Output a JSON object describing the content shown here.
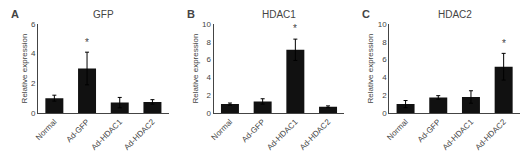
{
  "chart_data": [
    {
      "type": "bar",
      "title": "GFP",
      "ylabel": "Relative expression",
      "categories": [
        "Normal",
        "Ad-GFP",
        "Ad-HDAC1",
        "Ad-HDAC2"
      ],
      "values": [
        1.0,
        3.0,
        0.7,
        0.75
      ],
      "errors": [
        0.2,
        1.1,
        0.35,
        0.15
      ],
      "color": "#111111",
      "ylim": [
        0,
        6
      ],
      "yticks": [
        0,
        2,
        4,
        6
      ],
      "grid": false,
      "annotations": [
        {
          "text": "A"
        },
        {
          "text": "*",
          "category": "Ad-GFP"
        }
      ]
    },
    {
      "type": "bar",
      "title": "HDAC1",
      "ylabel": "Relative expression",
      "categories": [
        "Normal",
        "Ad-GFP",
        "Ad-HDAC1",
        "Ad-HDAC2"
      ],
      "values": [
        1.0,
        1.3,
        7.1,
        0.7
      ],
      "errors": [
        0.12,
        0.3,
        1.2,
        0.1
      ],
      "color": "#111111",
      "ylim": [
        0,
        10
      ],
      "yticks": [
        0,
        2,
        4,
        6,
        8,
        10
      ],
      "grid": false,
      "annotations": [
        {
          "text": "B"
        },
        {
          "text": "*",
          "category": "Ad-HDAC1"
        }
      ]
    },
    {
      "type": "bar",
      "title": "HDAC2",
      "ylabel": "Relative expression",
      "categories": [
        "Normal",
        "Ad-GFP",
        "Ad-HDAC1",
        "Ad-HDAC2"
      ],
      "values": [
        1.0,
        1.75,
        1.8,
        5.2
      ],
      "errors": [
        0.4,
        0.2,
        0.7,
        1.5
      ],
      "color": "#111111",
      "ylim": [
        0,
        10
      ],
      "yticks": [
        0,
        2,
        4,
        6,
        8,
        10
      ],
      "grid": false,
      "annotations": [
        {
          "text": "C"
        },
        {
          "text": "*",
          "category": "Ad-HDAC2"
        }
      ]
    }
  ]
}
